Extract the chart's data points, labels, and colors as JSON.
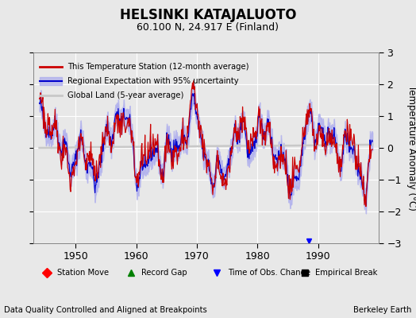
{
  "title": "HELSINKI KATAJALUOTO",
  "subtitle": "60.100 N, 24.917 E (Finland)",
  "ylabel": "Temperature Anomaly (°C)",
  "xlim": [
    1943,
    2000
  ],
  "ylim": [
    -3,
    3
  ],
  "yticks": [
    -3,
    -2,
    -1,
    0,
    1,
    2,
    3
  ],
  "xticks": [
    1950,
    1960,
    1970,
    1980,
    1990
  ],
  "background_color": "#e8e8e8",
  "plot_bg_color": "#e8e8e8",
  "grid_color": "#ffffff",
  "station_line_color": "#cc0000",
  "regional_line_color": "#0000cc",
  "regional_fill_color": "#aaaaee",
  "global_land_color": "#c8c8c8",
  "footer_left": "Data Quality Controlled and Aligned at Breakpoints",
  "footer_right": "Berkeley Earth",
  "legend1_entries": [
    "This Temperature Station (12-month average)",
    "Regional Expectation with 95% uncertainty",
    "Global Land (5-year average)"
  ],
  "legend2_entries": [
    "Station Move",
    "Record Gap",
    "Time of Obs. Change",
    "Empirical Break"
  ],
  "time_of_obs_change_years": [
    1988.5
  ]
}
